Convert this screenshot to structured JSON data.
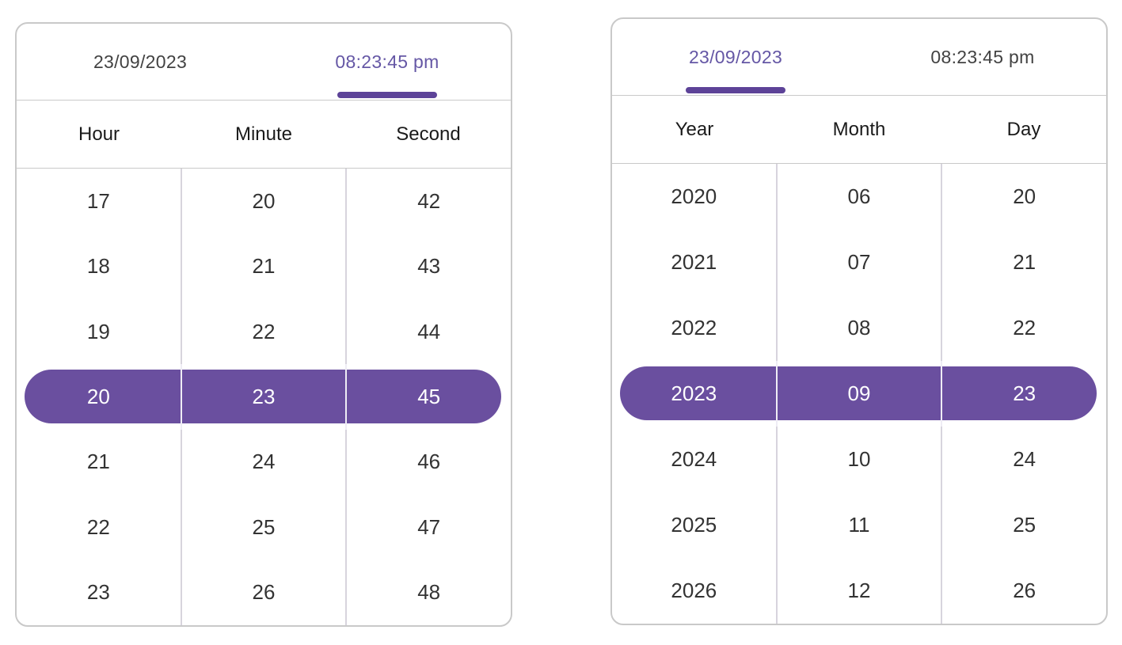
{
  "colors": {
    "accent_purple": "#6a4f9f",
    "active_tab_text": "#6557a5",
    "tab_indicator": "#5d4398",
    "selected_text": "#ffffff",
    "panel_border": "#c9c9c9",
    "column_divider": "#d7d4dd",
    "header_text": "#1a1a1a",
    "cell_text": "#333333",
    "inactive_tab_text": "#424242",
    "background": "#ffffff"
  },
  "pickers": [
    {
      "id": "time-picker",
      "tabs": [
        {
          "label": "23/09/2023",
          "active": false
        },
        {
          "label": "08:23:45 pm",
          "active": true
        }
      ],
      "columns": [
        "Hour",
        "Minute",
        "Second"
      ],
      "rows": [
        [
          "17",
          "20",
          "42"
        ],
        [
          "18",
          "21",
          "43"
        ],
        [
          "19",
          "22",
          "44"
        ],
        [
          "20",
          "23",
          "45"
        ],
        [
          "21",
          "24",
          "46"
        ],
        [
          "22",
          "25",
          "47"
        ],
        [
          "23",
          "26",
          "48"
        ]
      ],
      "selected_row_index": 3,
      "selected_values": {
        "hour": "20",
        "minute": "23",
        "second": "45"
      }
    },
    {
      "id": "date-picker",
      "tabs": [
        {
          "label": "23/09/2023",
          "active": true
        },
        {
          "label": "08:23:45 pm",
          "active": false
        }
      ],
      "columns": [
        "Year",
        "Month",
        "Day"
      ],
      "rows": [
        [
          "2020",
          "06",
          "20"
        ],
        [
          "2021",
          "07",
          "21"
        ],
        [
          "2022",
          "08",
          "22"
        ],
        [
          "2023",
          "09",
          "23"
        ],
        [
          "2024",
          "10",
          "24"
        ],
        [
          "2025",
          "11",
          "25"
        ],
        [
          "2026",
          "12",
          "26"
        ]
      ],
      "selected_row_index": 3,
      "selected_values": {
        "year": "2023",
        "month": "09",
        "day": "23"
      }
    }
  ]
}
